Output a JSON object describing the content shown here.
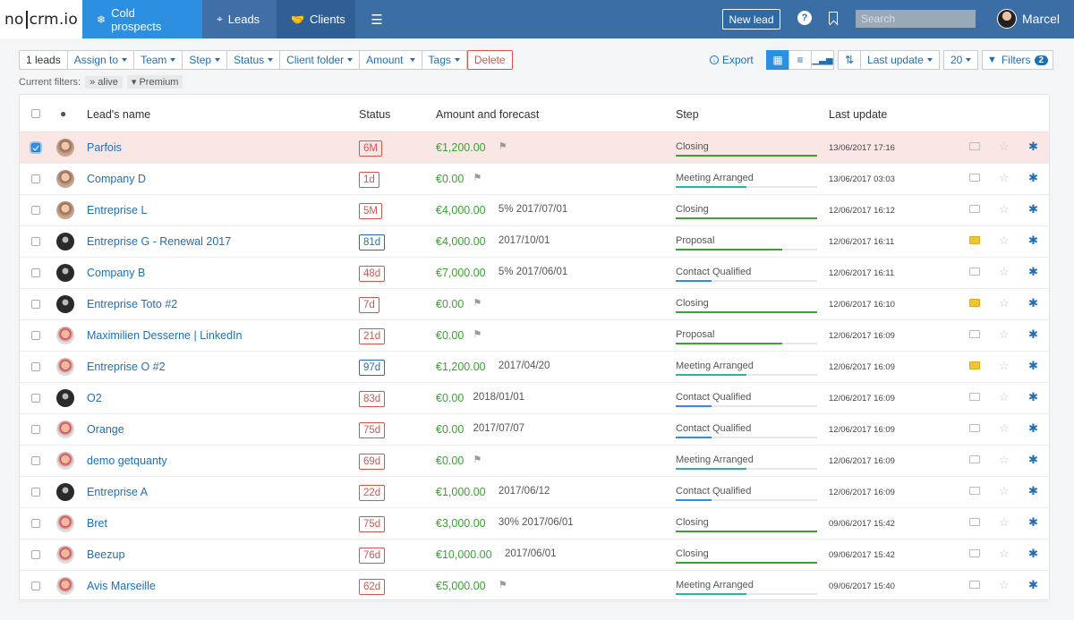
{
  "nav": {
    "logo_left": "no",
    "logo_mid": "crm",
    "logo_right": ".io",
    "tabs": [
      {
        "label": "Cold prospects",
        "icon": "snowflake-icon"
      },
      {
        "label": "Leads",
        "icon": "target-icon"
      },
      {
        "label": "Clients",
        "icon": "handshake-icon"
      }
    ],
    "menu_icon": "hamburger-icon",
    "new_lead": "New lead",
    "search_placeholder": "Search",
    "user_name": "Marcel"
  },
  "toolbar": {
    "count": "1 leads",
    "assign_to": "Assign to",
    "team": "Team",
    "step": "Step",
    "status": "Status",
    "client_folder": "Client folder",
    "amount": "Amount",
    "tags": "Tags",
    "delete": "Delete",
    "export": "Export",
    "sort": "Last update",
    "page_size": "20",
    "filters": "Filters",
    "filters_count": "2"
  },
  "current_filters": {
    "label": "Current filters:",
    "chips": [
      "alive",
      "Premium"
    ]
  },
  "table": {
    "headers": {
      "name": "Lead's name",
      "status": "Status",
      "amount": "Amount and forecast",
      "step": "Step",
      "update": "Last update"
    },
    "rows": [
      {
        "name": "Parfois",
        "status": "6M",
        "status_color": "red",
        "amount": "€1,200.00",
        "forecast": "",
        "flag": true,
        "step": "Closing",
        "step_pct": 100,
        "date": "13/06/2017 17:16",
        "folder": false,
        "selected": true,
        "avatar": "a"
      },
      {
        "name": "Company D",
        "status": "1d",
        "status_color": "red",
        "amount": "€0.00",
        "forecast": "",
        "flag": true,
        "step": "Meeting Arranged",
        "step_pct": 50,
        "date": "13/06/2017 03:03",
        "folder": false,
        "selected": false,
        "avatar": "a"
      },
      {
        "name": "Entreprise L",
        "status": "5M",
        "status_color": "red",
        "amount": "€4,000.00",
        "forecast": "5% 2017/07/01",
        "flag": false,
        "step": "Closing",
        "step_pct": 100,
        "date": "12/06/2017 16:12",
        "folder": false,
        "selected": false,
        "avatar": "a"
      },
      {
        "name": "Entreprise G - Renewal 2017",
        "status": "81d",
        "status_color": "blue",
        "amount": "€4,000.00",
        "forecast": "2017/10/01",
        "flag": false,
        "step": "Proposal",
        "step_pct": 75,
        "date": "12/06/2017 16:11",
        "folder": true,
        "selected": false,
        "avatar": "b"
      },
      {
        "name": "Company B",
        "status": "48d",
        "status_color": "red",
        "amount": "€7,000.00",
        "forecast": "5% 2017/06/01",
        "flag": false,
        "step": "Contact Qualified",
        "step_pct": 25,
        "date": "12/06/2017 16:11",
        "folder": false,
        "selected": false,
        "avatar": "b"
      },
      {
        "name": "Entreprise Toto #2",
        "status": "7d",
        "status_color": "red",
        "amount": "€0.00",
        "forecast": "",
        "flag": true,
        "step": "Closing",
        "step_pct": 100,
        "date": "12/06/2017 16:10",
        "folder": true,
        "selected": false,
        "avatar": "b"
      },
      {
        "name": "Maximilien Desserne | LinkedIn",
        "status": "21d",
        "status_color": "red",
        "amount": "€0.00",
        "forecast": "",
        "flag": true,
        "step": "Proposal",
        "step_pct": 75,
        "date": "12/06/2017 16:09",
        "folder": false,
        "selected": false,
        "avatar": "c"
      },
      {
        "name": "Entreprise O #2",
        "status": "97d",
        "status_color": "blue",
        "amount": "€1,200.00",
        "forecast": "2017/04/20",
        "flag": false,
        "step": "Meeting Arranged",
        "step_pct": 50,
        "date": "12/06/2017 16:09",
        "folder": true,
        "selected": false,
        "avatar": "c"
      },
      {
        "name": "O2",
        "status": "83d",
        "status_color": "red",
        "amount": "€0.00",
        "forecast": "2018/01/01",
        "flag": false,
        "step": "Contact Qualified",
        "step_pct": 25,
        "date": "12/06/2017 16:09",
        "folder": false,
        "selected": false,
        "avatar": "b"
      },
      {
        "name": "Orange",
        "status": "75d",
        "status_color": "red",
        "amount": "€0.00",
        "forecast": "2017/07/07",
        "flag": false,
        "step": "Contact Qualified",
        "step_pct": 25,
        "date": "12/06/2017 16:09",
        "folder": false,
        "selected": false,
        "avatar": "c"
      },
      {
        "name": "demo getquanty",
        "status": "69d",
        "status_color": "red",
        "amount": "€0.00",
        "forecast": "",
        "flag": true,
        "step": "Meeting Arranged",
        "step_pct": 50,
        "date": "12/06/2017 16:09",
        "folder": false,
        "selected": false,
        "avatar": "c"
      },
      {
        "name": "Entreprise A",
        "status": "22d",
        "status_color": "red",
        "amount": "€1,000.00",
        "forecast": "2017/06/12",
        "flag": false,
        "step": "Contact Qualified",
        "step_pct": 25,
        "date": "12/06/2017 16:09",
        "folder": false,
        "selected": false,
        "avatar": "b"
      },
      {
        "name": "Bret",
        "status": "75d",
        "status_color": "red",
        "amount": "€3,000.00",
        "forecast": "30% 2017/06/01",
        "flag": false,
        "step": "Closing",
        "step_pct": 100,
        "date": "09/06/2017 15:42",
        "folder": false,
        "selected": false,
        "avatar": "c"
      },
      {
        "name": "Beezup",
        "status": "76d",
        "status_color": "red",
        "amount": "€10,000.00",
        "forecast": "2017/06/01",
        "flag": false,
        "step": "Closing",
        "step_pct": 100,
        "date": "09/06/2017 15:42",
        "folder": false,
        "selected": false,
        "avatar": "c"
      },
      {
        "name": "Avis Marseille",
        "status": "62d",
        "status_color": "red",
        "amount": "€5,000.00",
        "forecast": "",
        "flag": true,
        "step": "Meeting Arranged",
        "step_pct": 50,
        "date": "09/06/2017 15:40",
        "folder": false,
        "selected": false,
        "avatar": "c"
      }
    ]
  }
}
